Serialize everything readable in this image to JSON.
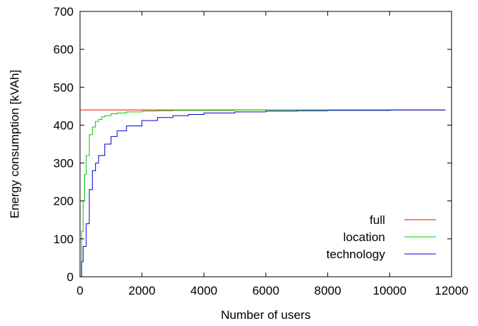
{
  "chart_data": {
    "type": "line",
    "xlabel": "Number of users",
    "ylabel": "Energy consumption [kVAh]",
    "xlim": [
      0,
      12000
    ],
    "ylim": [
      0,
      700
    ],
    "x_ticks": [
      0,
      2000,
      4000,
      6000,
      8000,
      10000,
      12000
    ],
    "y_ticks": [
      0,
      100,
      200,
      300,
      400,
      500,
      600,
      700
    ],
    "x_tick_labels": [
      "0",
      "2000",
      "4000",
      "6000",
      "8000",
      "10000",
      "12000"
    ],
    "y_tick_labels": [
      "0",
      "100",
      "200",
      "300",
      "400",
      "500",
      "600",
      "700"
    ],
    "grid": false,
    "legend_position": "bottom-right",
    "series": [
      {
        "name": "full",
        "color": "#ff0000",
        "x": [
          0,
          11800
        ],
        "y": [
          440,
          440
        ]
      },
      {
        "name": "location",
        "color": "#00cc00",
        "x": [
          0,
          50,
          100,
          150,
          200,
          300,
          400,
          500,
          600,
          700,
          800,
          1000,
          1200,
          1500,
          2000,
          2500,
          3000,
          4000,
          5000,
          6000,
          8000,
          10000,
          11800
        ],
        "y": [
          0,
          120,
          200,
          270,
          320,
          375,
          395,
          410,
          415,
          422,
          425,
          430,
          432,
          435,
          437,
          438,
          439,
          439,
          440,
          440,
          440,
          440,
          440
        ]
      },
      {
        "name": "technology",
        "color": "#0000cc",
        "x": [
          0,
          50,
          100,
          200,
          300,
          400,
          500,
          600,
          800,
          1000,
          1200,
          1500,
          2000,
          2500,
          3000,
          3500,
          4000,
          5000,
          6000,
          7000,
          8000,
          9000,
          10000,
          11000,
          11800
        ],
        "y": [
          0,
          40,
          80,
          140,
          230,
          280,
          300,
          320,
          350,
          370,
          385,
          398,
          412,
          420,
          425,
          428,
          432,
          435,
          437,
          438,
          439,
          439,
          440,
          440,
          440
        ]
      }
    ]
  }
}
